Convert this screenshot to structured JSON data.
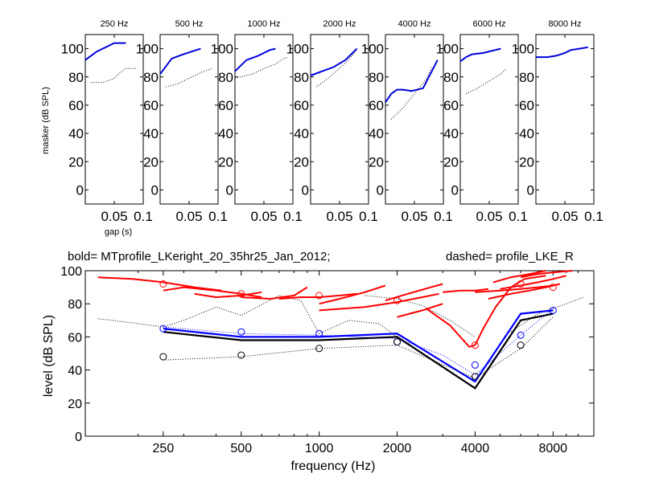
{
  "chart_data": [
    {
      "type": "line",
      "title": "250 Hz",
      "ylabel": "masker (dB SPL)",
      "xlabel": "gap (s)",
      "xlim": [
        0,
        0.1
      ],
      "ylim": [
        -10,
        110
      ],
      "xticks": [
        0.05,
        0.1
      ],
      "xtick_labels": [
        "0.05",
        "0.1"
      ],
      "yticks": [
        0,
        20,
        40,
        60,
        80,
        100
      ],
      "ytick_labels": [
        "0",
        "20",
        "40",
        "60",
        "80",
        "100"
      ],
      "series": [
        {
          "name": "bold",
          "style": "solid",
          "color": "#0000dd",
          "x": [
            0,
            0.01,
            0.02,
            0.03,
            0.04,
            0.05,
            0.06,
            0.07
          ],
          "y": [
            92,
            95,
            98,
            100,
            102,
            104,
            104,
            104
          ]
        },
        {
          "name": "dashed",
          "style": "dotted",
          "color": "#000000",
          "x": [
            0.01,
            0.03,
            0.05,
            0.06,
            0.07,
            0.08,
            0.09
          ],
          "y": [
            76,
            76,
            79,
            83,
            86,
            86,
            86
          ]
        }
      ]
    },
    {
      "type": "line",
      "title": "500 Hz",
      "xlim": [
        0,
        0.1
      ],
      "ylim": [
        -10,
        110
      ],
      "xticks": [
        0.05,
        0.1
      ],
      "xtick_labels": [
        "0.05",
        "0.1"
      ],
      "yticks": [
        0,
        20,
        40,
        60,
        80,
        100
      ],
      "ytick_labels": [
        "0",
        "20",
        "40",
        "60",
        "80",
        "100"
      ],
      "series": [
        {
          "name": "bold",
          "style": "solid",
          "color": "#0000dd",
          "x": [
            0,
            0.02,
            0.04,
            0.055,
            0.07
          ],
          "y": [
            82,
            93,
            96,
            98,
            100
          ]
        },
        {
          "name": "dashed",
          "style": "dotted",
          "color": "#000000",
          "x": [
            0.01,
            0.03,
            0.05,
            0.07,
            0.09
          ],
          "y": [
            73,
            75,
            79,
            83,
            86
          ]
        }
      ]
    },
    {
      "type": "line",
      "title": "1000 Hz",
      "xlim": [
        0,
        0.1
      ],
      "ylim": [
        -10,
        110
      ],
      "xticks": [
        0.05,
        0.1
      ],
      "xtick_labels": [
        "0.05",
        "0.1"
      ],
      "yticks": [
        0,
        20,
        40,
        60,
        80,
        100
      ],
      "ytick_labels": [
        "0",
        "20",
        "40",
        "60",
        "80",
        "100"
      ],
      "series": [
        {
          "name": "bold",
          "style": "solid",
          "color": "#0000dd",
          "x": [
            0,
            0.01,
            0.02,
            0.04,
            0.05,
            0.06,
            0.07
          ],
          "y": [
            84,
            88,
            92,
            95,
            97,
            99,
            100
          ]
        },
        {
          "name": "dashed",
          "style": "dotted",
          "color": "#000000",
          "x": [
            0,
            0.03,
            0.05,
            0.07,
            0.08,
            0.09
          ],
          "y": [
            79,
            82,
            86,
            89,
            92,
            94
          ]
        }
      ]
    },
    {
      "type": "line",
      "title": "2000 Hz",
      "xlim": [
        0,
        0.1
      ],
      "ylim": [
        -10,
        110
      ],
      "xticks": [
        0.05,
        0.1
      ],
      "xtick_labels": [
        "0.05",
        "0.1"
      ],
      "yticks": [
        0,
        20,
        40,
        60,
        80,
        100
      ],
      "ytick_labels": [
        "0",
        "20",
        "40",
        "60",
        "80",
        "100"
      ],
      "series": [
        {
          "name": "bold",
          "style": "solid",
          "color": "#0000dd",
          "x": [
            0,
            0.02,
            0.04,
            0.06,
            0.08
          ],
          "y": [
            81,
            84,
            87,
            92,
            100
          ]
        },
        {
          "name": "dashed",
          "style": "dotted",
          "color": "#000000",
          "x": [
            0.01,
            0.03,
            0.05,
            0.07,
            0.08
          ],
          "y": [
            73,
            79,
            86,
            94,
            100
          ]
        }
      ]
    },
    {
      "type": "line",
      "title": "4000 Hz",
      "xlim": [
        0,
        0.1
      ],
      "ylim": [
        -10,
        110
      ],
      "xticks": [
        0.05,
        0.1
      ],
      "xtick_labels": [
        "0.05",
        "0.1"
      ],
      "yticks": [
        0,
        20,
        40,
        60,
        80,
        100
      ],
      "ytick_labels": [
        "0",
        "20",
        "40",
        "60",
        "80",
        "100"
      ],
      "series": [
        {
          "name": "bold",
          "style": "solid",
          "color": "#0000dd",
          "x": [
            0,
            0.01,
            0.02,
            0.03,
            0.045,
            0.065,
            0.08,
            0.09
          ],
          "y": [
            62,
            68,
            71,
            71,
            70,
            72,
            84,
            92
          ]
        },
        {
          "name": "dashed",
          "style": "dotted",
          "color": "#000000",
          "x": [
            0.01,
            0.03,
            0.05,
            0.07,
            0.08
          ],
          "y": [
            50,
            58,
            68,
            78,
            87
          ]
        }
      ]
    },
    {
      "type": "line",
      "title": "6000 Hz",
      "xlim": [
        0,
        0.1
      ],
      "ylim": [
        -10,
        110
      ],
      "xticks": [
        0.05,
        0.1
      ],
      "xtick_labels": [
        "0.05",
        "0.1"
      ],
      "yticks": [
        0,
        20,
        40,
        60,
        80,
        100
      ],
      "ytick_labels": [
        "0",
        "20",
        "40",
        "60",
        "80",
        "100"
      ],
      "series": [
        {
          "name": "bold",
          "style": "solid",
          "color": "#0000dd",
          "x": [
            0,
            0.01,
            0.02,
            0.04,
            0.05,
            0.06,
            0.07
          ],
          "y": [
            91,
            94,
            96,
            97,
            98,
            99,
            100
          ]
        },
        {
          "name": "dashed",
          "style": "dotted",
          "color": "#000000",
          "x": [
            0.01,
            0.03,
            0.05,
            0.07,
            0.08
          ],
          "y": [
            68,
            72,
            77,
            82,
            86
          ]
        }
      ]
    },
    {
      "type": "line",
      "title": "8000 Hz",
      "xlim": [
        0,
        0.1
      ],
      "ylim": [
        -10,
        110
      ],
      "xticks": [
        0.05,
        0.1
      ],
      "xtick_labels": [
        "0.05",
        "0.1"
      ],
      "yticks": [
        0,
        20,
        40,
        60,
        80,
        100
      ],
      "ytick_labels": [
        "0",
        "20",
        "40",
        "60",
        "80",
        "100"
      ],
      "series": [
        {
          "name": "bold",
          "style": "solid",
          "color": "#0000dd",
          "x": [
            0,
            0.01,
            0.02,
            0.035,
            0.05,
            0.06,
            0.075,
            0.09
          ],
          "y": [
            94,
            94,
            94,
            95,
            97,
            99,
            100,
            101
          ]
        },
        {
          "name": "dashed",
          "style": "dotted",
          "color": "#000000",
          "x": [],
          "y": []
        }
      ]
    },
    {
      "type": "line",
      "title_left": "bold= MTprofile_LKeright_20_35hr25_Jan_2012;",
      "title_right": "dashed=  profile_LKE_R",
      "xlabel": "frequency (Hz)",
      "ylabel": "level (dB SPL)",
      "xscale": "log",
      "xlim": [
        125,
        11500
      ],
      "ylim": [
        0,
        100
      ],
      "xticks": [
        250,
        500,
        1000,
        2000,
        4000,
        8000
      ],
      "xtick_labels": [
        "250",
        "500",
        "1000",
        "2000",
        "4000",
        "8000"
      ],
      "yticks": [
        0,
        20,
        40,
        60,
        80,
        100
      ],
      "ytick_labels": [
        "0",
        "20",
        "40",
        "60",
        "80",
        "100"
      ],
      "series": [
        {
          "name": "black bold",
          "style": "solid",
          "color": "#000000",
          "x": [
            250,
            500,
            1000,
            2000,
            4000,
            6000,
            8000
          ],
          "y": [
            63,
            58,
            58,
            60,
            29,
            70,
            74
          ]
        },
        {
          "name": "blue bold",
          "style": "solid",
          "color": "#0000ff",
          "x": [
            250,
            500,
            1000,
            2000,
            4000,
            6000,
            8000
          ],
          "y": [
            65,
            60,
            60,
            62,
            33,
            74,
            76
          ]
        },
        {
          "name": "blue circles",
          "style": "circle",
          "color": "#0000ff",
          "x": [
            250,
            500,
            1000,
            2000,
            4000,
            6000,
            8000
          ],
          "y": [
            65,
            63,
            62,
            57,
            43,
            61,
            76
          ]
        },
        {
          "name": "black circles",
          "style": "circle",
          "color": "#000000",
          "x": [
            250,
            500,
            1000,
            2000,
            4000,
            6000
          ],
          "y": [
            48,
            49,
            53,
            57,
            36,
            55
          ]
        },
        {
          "name": "blue dotted",
          "style": "dotted",
          "color": "#0000ff",
          "x": [
            250,
            500,
            1000,
            2000,
            3000,
            4000,
            6000,
            8000
          ],
          "y": [
            66,
            62,
            61,
            59,
            49,
            37,
            61,
            77
          ]
        },
        {
          "name": "black dotted",
          "style": "dotted",
          "color": "#000000",
          "x": [
            250,
            500,
            1000,
            2000,
            4000,
            6000,
            8000
          ],
          "y": [
            46,
            48,
            53,
            55,
            35,
            53,
            72
          ]
        },
        {
          "name": "red circles",
          "style": "circle",
          "color": "#ff0000",
          "x": [
            250,
            500,
            1000,
            2000,
            4000,
            6000,
            8000
          ],
          "y": [
            92,
            86,
            85,
            82,
            55,
            92,
            90
          ]
        }
      ],
      "red_segments": [
        {
          "x": [
            140,
            190,
            250,
            330,
            420
          ],
          "y": [
            96,
            95,
            93,
            90,
            88
          ]
        },
        {
          "x": [
            250,
            300,
            400,
            500,
            600
          ],
          "y": [
            88,
            90,
            88,
            86,
            84
          ]
        },
        {
          "x": [
            330,
            400,
            500,
            600
          ],
          "y": [
            86,
            84,
            85,
            87
          ]
        },
        {
          "x": [
            500,
            650,
            800,
            900
          ],
          "y": [
            84,
            83,
            85,
            90
          ]
        },
        {
          "x": [
            700,
            850,
            1000,
            1200,
            1400
          ],
          "y": [
            83,
            84,
            84,
            85,
            86
          ]
        },
        {
          "x": [
            1000,
            1200,
            1500,
            1800
          ],
          "y": [
            80,
            83,
            87,
            91
          ]
        },
        {
          "x": [
            1000,
            1500,
            2000,
            2500,
            2900
          ],
          "y": [
            76,
            78,
            81,
            84,
            86
          ]
        },
        {
          "x": [
            1800,
            2200,
            2700,
            3000
          ],
          "y": [
            82,
            86,
            90,
            92
          ]
        },
        {
          "x": [
            2000,
            2500,
            3000
          ],
          "y": [
            72,
            76,
            80
          ]
        },
        {
          "x": [
            3000,
            3500,
            4000,
            4500
          ],
          "y": [
            87,
            88,
            88,
            89
          ]
        },
        {
          "x": [
            2600,
            3200,
            3800,
            4000
          ],
          "y": [
            77,
            67,
            54,
            55
          ]
        },
        {
          "x": [
            4000,
            4300,
            4800,
            5500,
            6200,
            7500
          ],
          "y": [
            55,
            65,
            78,
            90,
            95,
            97
          ]
        },
        {
          "x": [
            4000,
            5000,
            6000,
            7000,
            8000
          ],
          "y": [
            87,
            88,
            89,
            90,
            91
          ]
        },
        {
          "x": [
            4700,
            5500,
            6500,
            7500
          ],
          "y": [
            93,
            96,
            98,
            100
          ]
        },
        {
          "x": [
            4500,
            5500,
            6500,
            7500,
            8500
          ],
          "y": [
            83,
            86,
            88,
            90,
            92
          ]
        },
        {
          "x": [
            5000,
            6000,
            7000,
            8000,
            9000
          ],
          "y": [
            89,
            91,
            93,
            95,
            97
          ]
        },
        {
          "x": [
            6000,
            7000,
            8000,
            9500
          ],
          "y": [
            96,
            98,
            99,
            100
          ]
        }
      ],
      "black_dotted_extra": [
        {
          "x": [
            140,
            200,
            250,
            300,
            400,
            500,
            700,
            850,
            1000,
            1300,
            1700,
            2000
          ],
          "y": [
            71,
            68,
            66,
            70,
            78,
            73,
            85,
            82,
            62,
            70,
            68,
            60
          ]
        },
        {
          "x": [
            1500,
            2000,
            2500,
            3200,
            4000
          ],
          "y": [
            85,
            83,
            79,
            70,
            60
          ]
        },
        {
          "x": [
            5500,
            7000,
            9000,
            10500
          ],
          "y": [
            63,
            74,
            80,
            84
          ]
        }
      ]
    }
  ]
}
